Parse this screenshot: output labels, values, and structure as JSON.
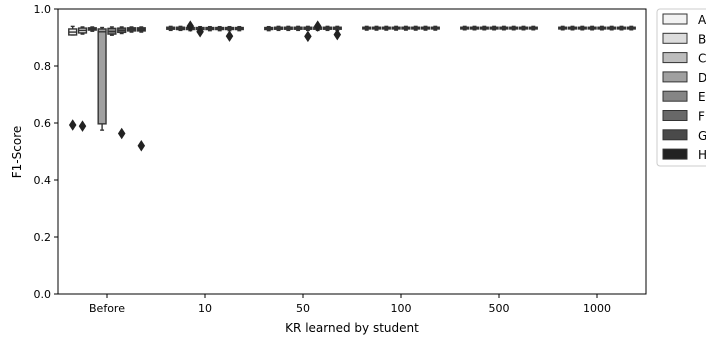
{
  "chart_data": {
    "type": "box",
    "title": "",
    "xlabel": "KR learned by student",
    "ylabel": "F1-Score",
    "ylim": [
      0.0,
      1.0
    ],
    "yticks": [
      "0.0",
      "0.2",
      "0.4",
      "0.6",
      "0.8",
      "1.0"
    ],
    "categories": [
      "Before",
      "10",
      "50",
      "100",
      "500",
      "1000"
    ],
    "grid": false,
    "legend_position": "right-outside",
    "series": [
      {
        "name": "A",
        "color": "#f2f2f2",
        "boxes": [
          {
            "q1": 0.909,
            "median": 0.919,
            "q3": 0.93,
            "low": 0.909,
            "high": 0.939,
            "outliers": []
          },
          {
            "q1": 0.929,
            "median": 0.932,
            "q3": 0.936,
            "low": 0.925,
            "high": 0.939,
            "outliers": []
          },
          {
            "q1": 0.928,
            "median": 0.932,
            "q3": 0.935,
            "low": 0.924,
            "high": 0.938,
            "outliers": []
          },
          {
            "q1": 0.93,
            "median": 0.933,
            "q3": 0.936,
            "low": 0.926,
            "high": 0.939,
            "outliers": []
          },
          {
            "q1": 0.93,
            "median": 0.933,
            "q3": 0.936,
            "low": 0.927,
            "high": 0.939,
            "outliers": []
          },
          {
            "q1": 0.93,
            "median": 0.933,
            "q3": 0.936,
            "low": 0.927,
            "high": 0.939,
            "outliers": []
          }
        ]
      },
      {
        "name": "B",
        "color": "#dcdcdc",
        "boxes": [
          {
            "q1": 0.916,
            "median": 0.925,
            "q3": 0.933,
            "low": 0.912,
            "high": 0.937,
            "outliers": [
              0.589
            ]
          },
          {
            "q1": 0.928,
            "median": 0.932,
            "q3": 0.936,
            "low": 0.925,
            "high": 0.939,
            "outliers": []
          },
          {
            "q1": 0.929,
            "median": 0.932,
            "q3": 0.936,
            "low": 0.925,
            "high": 0.939,
            "outliers": []
          },
          {
            "q1": 0.93,
            "median": 0.933,
            "q3": 0.936,
            "low": 0.926,
            "high": 0.939,
            "outliers": []
          },
          {
            "q1": 0.93,
            "median": 0.933,
            "q3": 0.936,
            "low": 0.927,
            "high": 0.939,
            "outliers": []
          },
          {
            "q1": 0.93,
            "median": 0.933,
            "q3": 0.936,
            "low": 0.927,
            "high": 0.939,
            "outliers": []
          }
        ]
      },
      {
        "name": "C",
        "color": "#bdbdbd",
        "boxes": [
          {
            "q1": 0.926,
            "median": 0.93,
            "q3": 0.934,
            "low": 0.922,
            "high": 0.937,
            "outliers": []
          },
          {
            "q1": 0.928,
            "median": 0.932,
            "q3": 0.935,
            "low": 0.924,
            "high": 0.938,
            "outliers": [
              0.94
            ]
          },
          {
            "q1": 0.929,
            "median": 0.932,
            "q3": 0.936,
            "low": 0.925,
            "high": 0.939,
            "outliers": []
          },
          {
            "q1": 0.93,
            "median": 0.933,
            "q3": 0.936,
            "low": 0.926,
            "high": 0.939,
            "outliers": []
          },
          {
            "q1": 0.93,
            "median": 0.933,
            "q3": 0.936,
            "low": 0.927,
            "high": 0.939,
            "outliers": []
          },
          {
            "q1": 0.93,
            "median": 0.933,
            "q3": 0.936,
            "low": 0.927,
            "high": 0.939,
            "outliers": []
          }
        ]
      },
      {
        "name": "D",
        "color": "#a0a0a0",
        "boxes": [
          {
            "q1": 0.597,
            "median": 0.92,
            "q3": 0.93,
            "low": 0.575,
            "high": 0.935,
            "outliers": []
          },
          {
            "q1": 0.928,
            "median": 0.932,
            "q3": 0.935,
            "low": 0.924,
            "high": 0.938,
            "outliers": [
              0.92
            ]
          },
          {
            "q1": 0.929,
            "median": 0.932,
            "q3": 0.936,
            "low": 0.925,
            "high": 0.939,
            "outliers": []
          },
          {
            "q1": 0.93,
            "median": 0.933,
            "q3": 0.936,
            "low": 0.926,
            "high": 0.939,
            "outliers": []
          },
          {
            "q1": 0.93,
            "median": 0.933,
            "q3": 0.936,
            "low": 0.927,
            "high": 0.939,
            "outliers": []
          },
          {
            "q1": 0.93,
            "median": 0.933,
            "q3": 0.936,
            "low": 0.927,
            "high": 0.939,
            "outliers": []
          }
        ]
      },
      {
        "name": "E",
        "color": "#858585",
        "boxes": [
          {
            "q1": 0.912,
            "median": 0.921,
            "q3": 0.932,
            "low": 0.908,
            "high": 0.937,
            "outliers": []
          },
          {
            "q1": 0.928,
            "median": 0.932,
            "q3": 0.935,
            "low": 0.924,
            "high": 0.938,
            "outliers": []
          },
          {
            "q1": 0.929,
            "median": 0.932,
            "q3": 0.936,
            "low": 0.925,
            "high": 0.939,
            "outliers": [
              0.904
            ]
          },
          {
            "q1": 0.93,
            "median": 0.933,
            "q3": 0.936,
            "low": 0.926,
            "high": 0.939,
            "outliers": []
          },
          {
            "q1": 0.93,
            "median": 0.933,
            "q3": 0.936,
            "low": 0.927,
            "high": 0.939,
            "outliers": []
          },
          {
            "q1": 0.93,
            "median": 0.933,
            "q3": 0.936,
            "low": 0.927,
            "high": 0.939,
            "outliers": []
          }
        ]
      },
      {
        "name": "F",
        "color": "#686868",
        "boxes": [
          {
            "q1": 0.918,
            "median": 0.925,
            "q3": 0.933,
            "low": 0.914,
            "high": 0.937,
            "outliers": [
              0.563
            ]
          },
          {
            "q1": 0.928,
            "median": 0.932,
            "q3": 0.935,
            "low": 0.924,
            "high": 0.938,
            "outliers": []
          },
          {
            "q1": 0.929,
            "median": 0.932,
            "q3": 0.936,
            "low": 0.925,
            "high": 0.939,
            "outliers": [
              0.94
            ]
          },
          {
            "q1": 0.93,
            "median": 0.933,
            "q3": 0.936,
            "low": 0.926,
            "high": 0.939,
            "outliers": []
          },
          {
            "q1": 0.93,
            "median": 0.933,
            "q3": 0.936,
            "low": 0.927,
            "high": 0.939,
            "outliers": []
          },
          {
            "q1": 0.93,
            "median": 0.933,
            "q3": 0.936,
            "low": 0.927,
            "high": 0.939,
            "outliers": []
          }
        ]
      },
      {
        "name": "G",
        "color": "#4a4a4a",
        "boxes": [
          {
            "q1": 0.923,
            "median": 0.929,
            "q3": 0.934,
            "low": 0.919,
            "high": 0.937,
            "outliers": []
          },
          {
            "q1": 0.928,
            "median": 0.932,
            "q3": 0.935,
            "low": 0.924,
            "high": 0.938,
            "outliers": [
              0.905
            ]
          },
          {
            "q1": 0.929,
            "median": 0.932,
            "q3": 0.936,
            "low": 0.925,
            "high": 0.939,
            "outliers": []
          },
          {
            "q1": 0.93,
            "median": 0.933,
            "q3": 0.936,
            "low": 0.926,
            "high": 0.939,
            "outliers": []
          },
          {
            "q1": 0.93,
            "median": 0.933,
            "q3": 0.936,
            "low": 0.927,
            "high": 0.939,
            "outliers": []
          },
          {
            "q1": 0.93,
            "median": 0.933,
            "q3": 0.936,
            "low": 0.927,
            "high": 0.939,
            "outliers": []
          }
        ]
      },
      {
        "name": "H",
        "color": "#222222",
        "boxes": [
          {
            "q1": 0.923,
            "median": 0.929,
            "q3": 0.934,
            "low": 0.919,
            "high": 0.937,
            "outliers": [
              0.52
            ]
          },
          {
            "q1": 0.928,
            "median": 0.932,
            "q3": 0.935,
            "low": 0.924,
            "high": 0.938,
            "outliers": []
          },
          {
            "q1": 0.929,
            "median": 0.932,
            "q3": 0.936,
            "low": 0.925,
            "high": 0.939,
            "outliers": [
              0.91
            ]
          },
          {
            "q1": 0.93,
            "median": 0.933,
            "q3": 0.936,
            "low": 0.926,
            "high": 0.939,
            "outliers": []
          },
          {
            "q1": 0.93,
            "median": 0.933,
            "q3": 0.936,
            "low": 0.927,
            "high": 0.939,
            "outliers": []
          },
          {
            "q1": 0.93,
            "median": 0.933,
            "q3": 0.936,
            "low": 0.927,
            "high": 0.939,
            "outliers": []
          }
        ]
      }
    ],
    "extra_outliers": [
      {
        "category": "Before",
        "series": "A",
        "value": 0.593
      }
    ]
  }
}
